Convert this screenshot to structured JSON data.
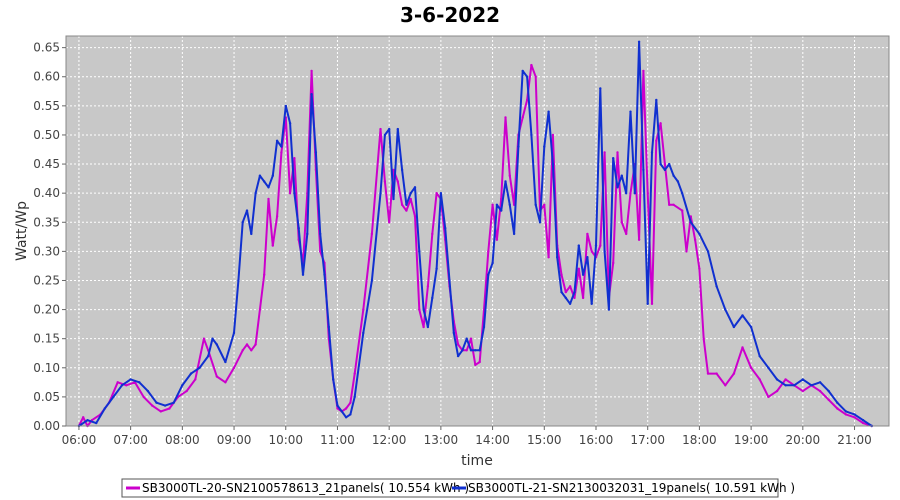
{
  "chart_data": {
    "type": "line",
    "title": "3-6-2022",
    "xlabel": "time",
    "ylabel": "Watt/Wp",
    "xlim": [
      "05:45",
      "21:40"
    ],
    "ylim": [
      0,
      0.67
    ],
    "x_ticks": [
      "06:00",
      "07:00",
      "08:00",
      "09:00",
      "10:00",
      "11:00",
      "12:00",
      "13:00",
      "14:00",
      "15:00",
      "16:00",
      "17:00",
      "18:00",
      "19:00",
      "20:00",
      "21:00"
    ],
    "y_ticks": [
      "0.00",
      "0.05",
      "0.10",
      "0.15",
      "0.20",
      "0.25",
      "0.30",
      "0.35",
      "0.40",
      "0.45",
      "0.50",
      "0.55",
      "0.60",
      "0.65"
    ],
    "grid": true,
    "legend_position": "bottom",
    "series": [
      {
        "name": "SB3000TL-20-SN2100578613_21panels( 10.554 kWh )",
        "color": "#cc00cc",
        "points": [
          [
            "06:00",
            0.0
          ],
          [
            "06:05",
            0.015
          ],
          [
            "06:10",
            0.0
          ],
          [
            "06:15",
            0.01
          ],
          [
            "06:25",
            0.02
          ],
          [
            "06:35",
            0.04
          ],
          [
            "06:45",
            0.075
          ],
          [
            "06:55",
            0.07
          ],
          [
            "07:05",
            0.075
          ],
          [
            "07:15",
            0.05
          ],
          [
            "07:25",
            0.035
          ],
          [
            "07:35",
            0.025
          ],
          [
            "07:45",
            0.03
          ],
          [
            "07:55",
            0.05
          ],
          [
            "08:05",
            0.06
          ],
          [
            "08:15",
            0.08
          ],
          [
            "08:25",
            0.15
          ],
          [
            "08:30",
            0.13
          ],
          [
            "08:40",
            0.085
          ],
          [
            "08:50",
            0.075
          ],
          [
            "09:00",
            0.1
          ],
          [
            "09:10",
            0.13
          ],
          [
            "09:15",
            0.14
          ],
          [
            "09:20",
            0.13
          ],
          [
            "09:25",
            0.14
          ],
          [
            "09:30",
            0.2
          ],
          [
            "09:35",
            0.26
          ],
          [
            "09:40",
            0.39
          ],
          [
            "09:45",
            0.31
          ],
          [
            "09:50",
            0.36
          ],
          [
            "09:55",
            0.47
          ],
          [
            "10:00",
            0.53
          ],
          [
            "10:05",
            0.4
          ],
          [
            "10:10",
            0.46
          ],
          [
            "10:15",
            0.32
          ],
          [
            "10:20",
            0.28
          ],
          [
            "10:25",
            0.4
          ],
          [
            "10:30",
            0.61
          ],
          [
            "10:35",
            0.44
          ],
          [
            "10:40",
            0.3
          ],
          [
            "10:45",
            0.28
          ],
          [
            "10:50",
            0.15
          ],
          [
            "10:55",
            0.08
          ],
          [
            "11:00",
            0.03
          ],
          [
            "11:05",
            0.025
          ],
          [
            "11:10",
            0.03
          ],
          [
            "11:15",
            0.04
          ],
          [
            "11:20",
            0.09
          ],
          [
            "11:30",
            0.2
          ],
          [
            "11:40",
            0.33
          ],
          [
            "11:50",
            0.51
          ],
          [
            "11:55",
            0.42
          ],
          [
            "12:00",
            0.35
          ],
          [
            "12:05",
            0.44
          ],
          [
            "12:10",
            0.42
          ],
          [
            "12:15",
            0.38
          ],
          [
            "12:20",
            0.37
          ],
          [
            "12:25",
            0.39
          ],
          [
            "12:30",
            0.36
          ],
          [
            "12:35",
            0.2
          ],
          [
            "12:40",
            0.17
          ],
          [
            "12:45",
            0.24
          ],
          [
            "12:50",
            0.33
          ],
          [
            "12:55",
            0.4
          ],
          [
            "13:00",
            0.39
          ],
          [
            "13:05",
            0.32
          ],
          [
            "13:10",
            0.24
          ],
          [
            "13:15",
            0.18
          ],
          [
            "13:20",
            0.14
          ],
          [
            "13:25",
            0.13
          ],
          [
            "13:30",
            0.13
          ],
          [
            "13:35",
            0.15
          ],
          [
            "13:40",
            0.105
          ],
          [
            "13:45",
            0.11
          ],
          [
            "13:50",
            0.2
          ],
          [
            "13:55",
            0.3
          ],
          [
            "14:00",
            0.38
          ],
          [
            "14:05",
            0.32
          ],
          [
            "14:10",
            0.39
          ],
          [
            "14:15",
            0.53
          ],
          [
            "14:20",
            0.43
          ],
          [
            "14:25",
            0.38
          ],
          [
            "14:30",
            0.5
          ],
          [
            "14:35",
            0.53
          ],
          [
            "14:40",
            0.56
          ],
          [
            "14:45",
            0.62
          ],
          [
            "14:50",
            0.6
          ],
          [
            "14:55",
            0.37
          ],
          [
            "15:00",
            0.38
          ],
          [
            "15:05",
            0.29
          ],
          [
            "15:10",
            0.5
          ],
          [
            "15:15",
            0.31
          ],
          [
            "15:20",
            0.26
          ],
          [
            "15:25",
            0.23
          ],
          [
            "15:30",
            0.24
          ],
          [
            "15:35",
            0.22
          ],
          [
            "15:40",
            0.27
          ],
          [
            "15:45",
            0.22
          ],
          [
            "15:50",
            0.33
          ],
          [
            "15:55",
            0.3
          ],
          [
            "16:00",
            0.29
          ],
          [
            "16:05",
            0.31
          ],
          [
            "16:10",
            0.47
          ],
          [
            "16:15",
            0.22
          ],
          [
            "16:20",
            0.28
          ],
          [
            "16:25",
            0.47
          ],
          [
            "16:30",
            0.35
          ],
          [
            "16:35",
            0.33
          ],
          [
            "16:40",
            0.4
          ],
          [
            "16:45",
            0.45
          ],
          [
            "16:50",
            0.32
          ],
          [
            "16:55",
            0.61
          ],
          [
            "17:00",
            0.4
          ],
          [
            "17:05",
            0.21
          ],
          [
            "17:10",
            0.49
          ],
          [
            "17:15",
            0.52
          ],
          [
            "17:20",
            0.45
          ],
          [
            "17:25",
            0.38
          ],
          [
            "17:30",
            0.38
          ],
          [
            "17:40",
            0.37
          ],
          [
            "17:45",
            0.3
          ],
          [
            "17:50",
            0.36
          ],
          [
            "17:55",
            0.32
          ],
          [
            "18:00",
            0.27
          ],
          [
            "18:05",
            0.15
          ],
          [
            "18:10",
            0.09
          ],
          [
            "18:20",
            0.09
          ],
          [
            "18:30",
            0.07
          ],
          [
            "18:40",
            0.09
          ],
          [
            "18:50",
            0.135
          ],
          [
            "19:00",
            0.1
          ],
          [
            "19:10",
            0.08
          ],
          [
            "19:20",
            0.05
          ],
          [
            "19:30",
            0.06
          ],
          [
            "19:40",
            0.08
          ],
          [
            "19:50",
            0.07
          ],
          [
            "20:00",
            0.06
          ],
          [
            "20:10",
            0.07
          ],
          [
            "20:20",
            0.06
          ],
          [
            "20:30",
            0.045
          ],
          [
            "20:40",
            0.03
          ],
          [
            "20:50",
            0.02
          ],
          [
            "21:00",
            0.015
          ],
          [
            "21:10",
            0.005
          ],
          [
            "21:20",
            0.0
          ]
        ]
      },
      {
        "name": "SB3000TL-21-SN2130032031_19panels( 10.591 kWh )",
        "color": "#1030d0",
        "points": [
          [
            "06:00",
            0.0
          ],
          [
            "06:10",
            0.01
          ],
          [
            "06:20",
            0.005
          ],
          [
            "06:30",
            0.03
          ],
          [
            "06:40",
            0.05
          ],
          [
            "06:50",
            0.07
          ],
          [
            "07:00",
            0.08
          ],
          [
            "07:10",
            0.075
          ],
          [
            "07:20",
            0.06
          ],
          [
            "07:30",
            0.04
          ],
          [
            "07:40",
            0.035
          ],
          [
            "07:50",
            0.04
          ],
          [
            "08:00",
            0.07
          ],
          [
            "08:10",
            0.09
          ],
          [
            "08:20",
            0.1
          ],
          [
            "08:30",
            0.12
          ],
          [
            "08:35",
            0.15
          ],
          [
            "08:40",
            0.14
          ],
          [
            "08:50",
            0.11
          ],
          [
            "09:00",
            0.16
          ],
          [
            "09:05",
            0.25
          ],
          [
            "09:10",
            0.35
          ],
          [
            "09:15",
            0.37
          ],
          [
            "09:20",
            0.33
          ],
          [
            "09:25",
            0.4
          ],
          [
            "09:30",
            0.43
          ],
          [
            "09:35",
            0.42
          ],
          [
            "09:40",
            0.41
          ],
          [
            "09:45",
            0.43
          ],
          [
            "09:50",
            0.49
          ],
          [
            "09:55",
            0.48
          ],
          [
            "10:00",
            0.55
          ],
          [
            "10:05",
            0.52
          ],
          [
            "10:10",
            0.4
          ],
          [
            "10:15",
            0.34
          ],
          [
            "10:20",
            0.26
          ],
          [
            "10:25",
            0.33
          ],
          [
            "10:30",
            0.57
          ],
          [
            "10:35",
            0.47
          ],
          [
            "10:40",
            0.33
          ],
          [
            "10:45",
            0.26
          ],
          [
            "10:50",
            0.17
          ],
          [
            "10:55",
            0.08
          ],
          [
            "11:00",
            0.035
          ],
          [
            "11:05",
            0.025
          ],
          [
            "11:10",
            0.015
          ],
          [
            "11:15",
            0.02
          ],
          [
            "11:20",
            0.05
          ],
          [
            "11:30",
            0.16
          ],
          [
            "11:40",
            0.25
          ],
          [
            "11:50",
            0.4
          ],
          [
            "11:55",
            0.5
          ],
          [
            "12:00",
            0.51
          ],
          [
            "12:05",
            0.39
          ],
          [
            "12:10",
            0.51
          ],
          [
            "12:15",
            0.44
          ],
          [
            "12:20",
            0.38
          ],
          [
            "12:25",
            0.4
          ],
          [
            "12:30",
            0.41
          ],
          [
            "12:35",
            0.3
          ],
          [
            "12:40",
            0.2
          ],
          [
            "12:45",
            0.17
          ],
          [
            "12:50",
            0.22
          ],
          [
            "12:55",
            0.27
          ],
          [
            "13:00",
            0.4
          ],
          [
            "13:05",
            0.34
          ],
          [
            "13:10",
            0.25
          ],
          [
            "13:15",
            0.16
          ],
          [
            "13:20",
            0.12
          ],
          [
            "13:25",
            0.13
          ],
          [
            "13:30",
            0.15
          ],
          [
            "13:35",
            0.13
          ],
          [
            "13:40",
            0.13
          ],
          [
            "13:45",
            0.13
          ],
          [
            "13:50",
            0.17
          ],
          [
            "13:55",
            0.26
          ],
          [
            "14:00",
            0.28
          ],
          [
            "14:05",
            0.38
          ],
          [
            "14:10",
            0.37
          ],
          [
            "14:15",
            0.42
          ],
          [
            "14:20",
            0.38
          ],
          [
            "14:25",
            0.33
          ],
          [
            "14:30",
            0.48
          ],
          [
            "14:35",
            0.61
          ],
          [
            "14:40",
            0.6
          ],
          [
            "14:45",
            0.5
          ],
          [
            "14:50",
            0.38
          ],
          [
            "14:55",
            0.35
          ],
          [
            "15:00",
            0.48
          ],
          [
            "15:05",
            0.54
          ],
          [
            "15:10",
            0.45
          ],
          [
            "15:15",
            0.29
          ],
          [
            "15:20",
            0.23
          ],
          [
            "15:25",
            0.22
          ],
          [
            "15:30",
            0.21
          ],
          [
            "15:35",
            0.23
          ],
          [
            "15:40",
            0.31
          ],
          [
            "15:45",
            0.26
          ],
          [
            "15:50",
            0.29
          ],
          [
            "15:55",
            0.21
          ],
          [
            "16:00",
            0.31
          ],
          [
            "16:05",
            0.58
          ],
          [
            "16:10",
            0.3
          ],
          [
            "16:15",
            0.2
          ],
          [
            "16:20",
            0.46
          ],
          [
            "16:25",
            0.41
          ],
          [
            "16:30",
            0.43
          ],
          [
            "16:35",
            0.4
          ],
          [
            "16:40",
            0.54
          ],
          [
            "16:45",
            0.4
          ],
          [
            "16:50",
            0.66
          ],
          [
            "16:55",
            0.44
          ],
          [
            "17:00",
            0.21
          ],
          [
            "17:05",
            0.47
          ],
          [
            "17:10",
            0.56
          ],
          [
            "17:15",
            0.45
          ],
          [
            "17:20",
            0.44
          ],
          [
            "17:25",
            0.45
          ],
          [
            "17:30",
            0.43
          ],
          [
            "17:35",
            0.42
          ],
          [
            "17:40",
            0.4
          ],
          [
            "17:50",
            0.35
          ],
          [
            "18:00",
            0.33
          ],
          [
            "18:10",
            0.3
          ],
          [
            "18:20",
            0.24
          ],
          [
            "18:30",
            0.2
          ],
          [
            "18:40",
            0.17
          ],
          [
            "18:50",
            0.19
          ],
          [
            "19:00",
            0.17
          ],
          [
            "19:10",
            0.12
          ],
          [
            "19:20",
            0.1
          ],
          [
            "19:30",
            0.08
          ],
          [
            "19:40",
            0.07
          ],
          [
            "19:50",
            0.07
          ],
          [
            "20:00",
            0.08
          ],
          [
            "20:10",
            0.07
          ],
          [
            "20:20",
            0.075
          ],
          [
            "20:30",
            0.06
          ],
          [
            "20:40",
            0.04
          ],
          [
            "20:50",
            0.025
          ],
          [
            "21:00",
            0.02
          ],
          [
            "21:10",
            0.01
          ],
          [
            "21:20",
            0.0
          ]
        ]
      }
    ]
  },
  "colors": {
    "plot_background": "#c8c8c8",
    "grid": "#ffffff",
    "axis": "#666666"
  }
}
